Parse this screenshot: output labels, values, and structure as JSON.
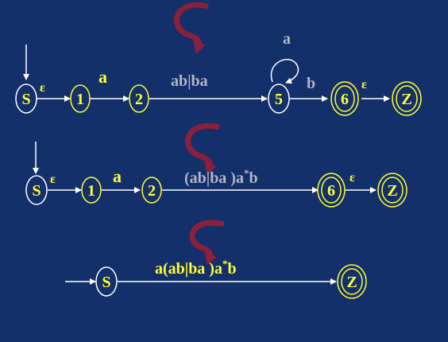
{
  "colors": {
    "background": "#13306b",
    "white": "#ffffff",
    "yellow": "#ffff33",
    "gray": "#b4b4c8",
    "curl_arrow": "#8c1f3c"
  },
  "row1": {
    "states": {
      "s": "S",
      "n1": "1",
      "n2": "2",
      "n5": "5",
      "n6": "6",
      "z": "Z"
    },
    "labels": {
      "eps1": "ε",
      "a": "a",
      "abba": "ab|ba",
      "loop_a": "a",
      "b": "b",
      "eps2": "ε"
    }
  },
  "row2": {
    "states": {
      "s": "S",
      "n1": "1",
      "n2": "2",
      "n6": "6",
      "z": "Z"
    },
    "labels": {
      "eps1": "ε",
      "a": "a",
      "expr_main": "(ab|ba )a",
      "expr_sup": "*",
      "expr_tail": "b",
      "eps2": "ε"
    }
  },
  "row3": {
    "states": {
      "s": "S",
      "z": "Z"
    },
    "labels": {
      "expr_main": "a(ab|ba )a",
      "expr_sup": "*",
      "expr_tail": "b"
    }
  }
}
